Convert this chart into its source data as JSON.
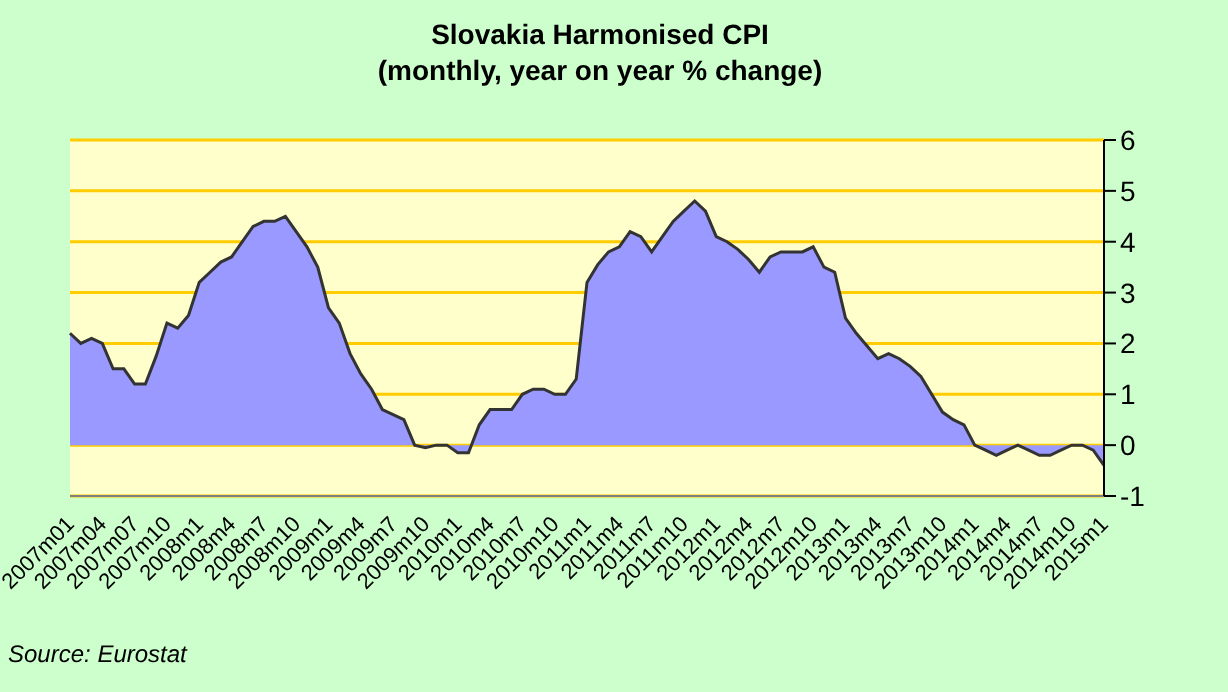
{
  "chart_data": {
    "type": "area",
    "title": "Slovakia Harmonised CPI",
    "subtitle": "(monthly, year on year % change)",
    "annotations": [
      "Source: Eurostat"
    ],
    "categories": [
      "2007m01",
      null,
      null,
      "2007m04",
      null,
      null,
      "2007m07",
      null,
      null,
      "2007m10",
      null,
      null,
      "2008m1",
      null,
      null,
      "2008m4",
      null,
      null,
      "2008m7",
      null,
      null,
      "2008m10",
      null,
      null,
      "2009m1",
      null,
      null,
      "2009m4",
      null,
      null,
      "2009m7",
      null,
      null,
      "2009m10",
      null,
      null,
      "2010m1",
      null,
      null,
      "2010m4",
      null,
      null,
      "2010m7",
      null,
      null,
      "2010m10",
      null,
      null,
      "2011m1",
      null,
      null,
      "2011m4",
      null,
      null,
      "2011m7",
      null,
      null,
      "2011m10",
      null,
      null,
      "2012m1",
      null,
      null,
      "2012m4",
      null,
      null,
      "2012m7",
      null,
      null,
      "2012m10",
      null,
      null,
      "2013m1",
      null,
      null,
      "2013m4",
      null,
      null,
      "2013m7",
      null,
      null,
      "2013m10",
      null,
      null,
      "2014m1",
      null,
      null,
      "2014m4",
      null,
      null,
      "2014m7",
      null,
      null,
      "2014m10",
      null,
      null,
      "2015m1"
    ],
    "series": [
      {
        "color": "#9999ff",
        "values": [
          2.2,
          2.0,
          2.1,
          2.0,
          1.5,
          1.5,
          1.2,
          1.2,
          1.75,
          2.4,
          2.3,
          2.55,
          3.2,
          3.4,
          3.6,
          3.7,
          4.0,
          4.3,
          4.4,
          4.4,
          4.5,
          4.2,
          3.9,
          3.5,
          2.7,
          2.4,
          1.8,
          1.4,
          1.1,
          0.7,
          0.6,
          0.5,
          0.0,
          -0.05,
          0.0,
          0.0,
          -0.15,
          -0.15,
          0.4,
          0.7,
          0.7,
          0.7,
          1.0,
          1.1,
          1.1,
          1.0,
          1.0,
          1.3,
          3.2,
          3.55,
          3.8,
          3.9,
          4.2,
          4.1,
          3.8,
          4.1,
          4.4,
          4.6,
          4.8,
          4.6,
          4.1,
          4.0,
          3.85,
          3.65,
          3.4,
          3.7,
          3.8,
          3.8,
          3.8,
          3.9,
          3.5,
          3.4,
          2.5,
          2.2,
          1.95,
          1.7,
          1.8,
          1.7,
          1.55,
          1.35,
          1.0,
          0.65,
          0.5,
          0.4,
          0.0,
          -0.1,
          -0.2,
          -0.1,
          0.0,
          -0.1,
          -0.2,
          -0.2,
          -0.1,
          0.0,
          0.0,
          -0.1,
          -0.4
        ]
      }
    ],
    "ylim": [
      -1,
      6
    ],
    "yticks": [
      -1,
      0,
      1,
      2,
      3,
      4,
      5,
      6
    ],
    "grid": "y"
  }
}
